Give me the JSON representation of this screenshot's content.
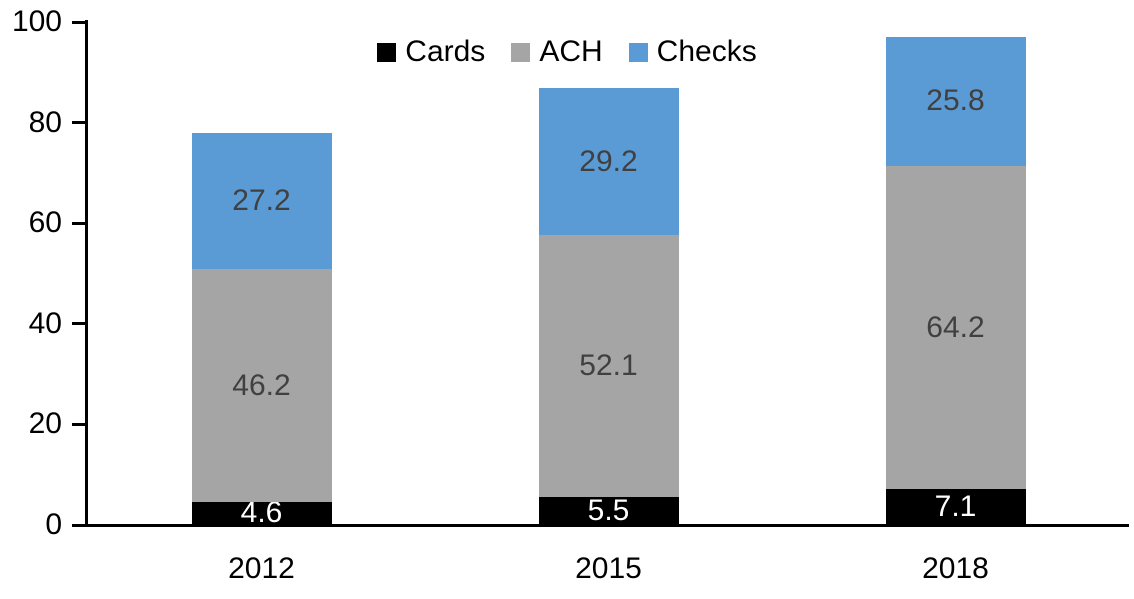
{
  "chart_data": {
    "type": "bar",
    "stacked": true,
    "title": "",
    "categories": [
      "2012",
      "2015",
      "2018"
    ],
    "series": [
      {
        "name": "Cards",
        "color": "#000000",
        "label_color": "#ffffff",
        "values": [
          4.6,
          5.5,
          7.1
        ]
      },
      {
        "name": "ACH",
        "color": "#a5a5a5",
        "label_color": "#404040",
        "values": [
          46.2,
          52.1,
          64.2
        ]
      },
      {
        "name": "Checks",
        "color": "#5b9bd5",
        "label_color": "#404040",
        "values": [
          27.2,
          29.2,
          25.8
        ]
      }
    ],
    "yticks": [
      0,
      20,
      40,
      60,
      80,
      100
    ],
    "ylim": [
      0,
      100
    ],
    "grid": false,
    "data_labels": true,
    "legend_position": "top-center",
    "axis_color": "#000000",
    "background_color": "#ffffff"
  }
}
